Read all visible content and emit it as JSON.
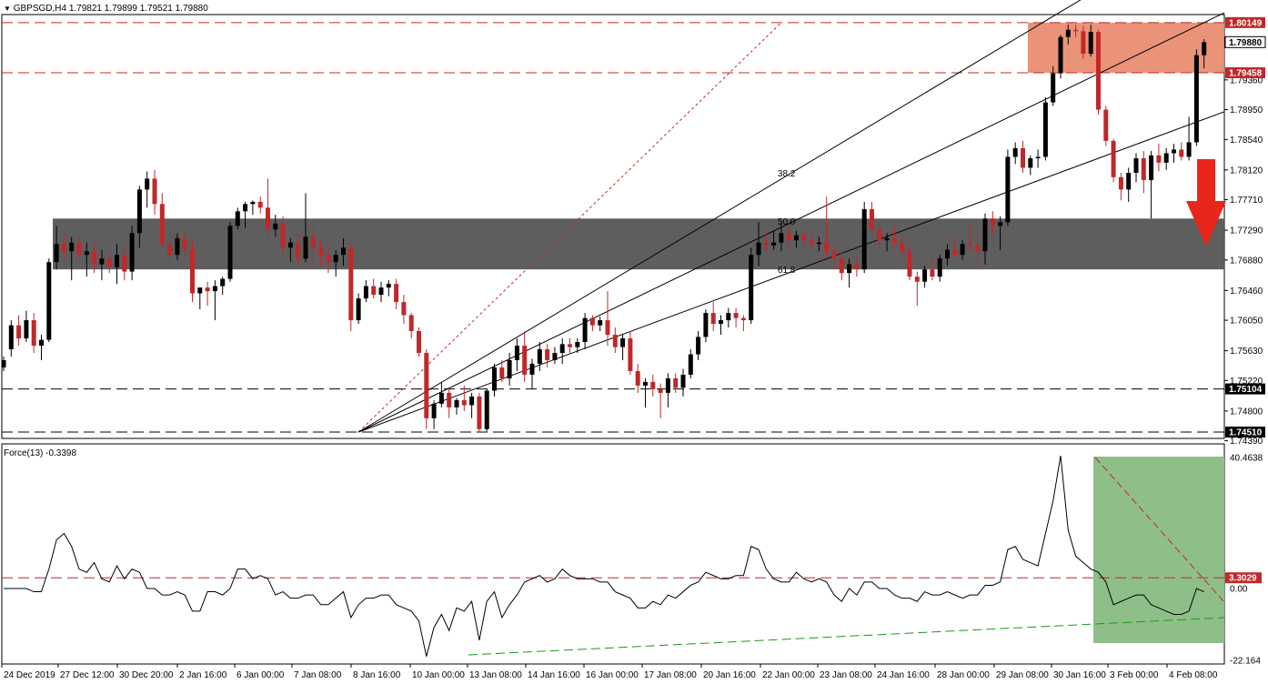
{
  "header": {
    "symbol_label": "GBPSGD,H4",
    "ohlc": "1.79821 1.79899 1.79521 1.79880",
    "indicator_label": "Force(13) -0.3398"
  },
  "colors": {
    "bull_candle": "#000000",
    "bear_candle": "#c0282a",
    "resistance_zone": "#e8876a",
    "support_zone": "#555555",
    "indicator_zone": "#8fbf88",
    "level_line": "#c0282a",
    "arrow": "#e8261c"
  },
  "icons": {
    "collapse": "triangle-down-icon"
  },
  "chart_data": [
    {
      "type": "candlestick",
      "title": "GBPSGD,H4",
      "ylim": [
        1.7439,
        1.8034
      ],
      "price_axis_ticks": [
        "1.79360",
        "1.78950",
        "1.78540",
        "1.78120",
        "1.77710",
        "1.77290",
        "1.76880",
        "1.76460",
        "1.76050",
        "1.75630",
        "1.75220",
        "1.74800",
        "1.74390"
      ],
      "time_axis_labels": [
        "24 Dec 2019",
        "27 Dec 12:00",
        "30 Dec 20:00",
        "2 Jan 16:00",
        "6 Jan 00:00",
        "7 Jan 08:00",
        "8 Jan 16:00",
        "10 Jan 00:00",
        "13 Jan 08:00",
        "14 Jan 16:00",
        "16 Jan 00:00",
        "17 Jan 08:00",
        "20 Jan 16:00",
        "22 Jan 00:00",
        "23 Jan 08:00",
        "24 Jan 16:00",
        "28 Jan 00:00",
        "29 Jan 08:00",
        "30 Jan 16:00",
        "3 Feb 00:00",
        "4 Feb 08:00"
      ],
      "price_levels": [
        {
          "label": "1.80149",
          "value": 1.80149,
          "style": "dashed-red"
        },
        {
          "label": "1.79458",
          "value": 1.79458,
          "style": "dashed-red"
        },
        {
          "label": "1.75104",
          "value": 1.75104,
          "style": "dashed-black"
        },
        {
          "label": "1.74510",
          "value": 1.7451,
          "style": "dashed-black"
        }
      ],
      "current_price": {
        "label": "1.79880",
        "value": 1.7988
      },
      "resistance_zone": [
        1.79458,
        1.80149
      ],
      "support_zone": [
        1.7675,
        1.7745
      ],
      "fibonacci_fan": {
        "anchor": {
          "index": 47,
          "value": 1.7451
        },
        "end": {
          "index": 103,
          "value": 1.80149
        },
        "levels": [
          "38.2",
          "50.0",
          "61.8"
        ]
      },
      "candles": [
        [
          1.754,
          1.7555,
          1.7535,
          1.755
        ],
        [
          1.7565,
          1.7605,
          1.7555,
          1.7598
        ],
        [
          1.7598,
          1.7612,
          1.757,
          1.758
        ],
        [
          1.758,
          1.7618,
          1.7575,
          1.7605
        ],
        [
          1.7605,
          1.7615,
          1.756,
          1.757
        ],
        [
          1.757,
          1.7585,
          1.755,
          1.7578
        ],
        [
          1.7578,
          1.769,
          1.7575,
          1.7685
        ],
        [
          1.7685,
          1.7735,
          1.7675,
          1.771
        ],
        [
          1.771,
          1.7725,
          1.769,
          1.77
        ],
        [
          1.77,
          1.772,
          1.766,
          1.7712
        ],
        [
          1.7712,
          1.772,
          1.7685,
          1.7695
        ],
        [
          1.7695,
          1.7712,
          1.7665,
          1.77
        ],
        [
          1.77,
          1.7712,
          1.767,
          1.7682
        ],
        [
          1.7682,
          1.7702,
          1.766,
          1.769
        ],
        [
          1.769,
          1.77,
          1.767,
          1.7678
        ],
        [
          1.7678,
          1.771,
          1.7655,
          1.7695
        ],
        [
          1.7695,
          1.7705,
          1.766,
          1.7672
        ],
        [
          1.7672,
          1.7735,
          1.766,
          1.7725
        ],
        [
          1.7725,
          1.779,
          1.7705,
          1.7785
        ],
        [
          1.7785,
          1.781,
          1.776,
          1.78
        ],
        [
          1.78,
          1.7812,
          1.775,
          1.7765
        ],
        [
          1.7765,
          1.778,
          1.7705,
          1.771
        ],
        [
          1.771,
          1.7725,
          1.768,
          1.7695
        ],
        [
          1.7695,
          1.7725,
          1.7688,
          1.7718
        ],
        [
          1.7718,
          1.7728,
          1.769,
          1.7702
        ],
        [
          1.7702,
          1.7715,
          1.763,
          1.7642
        ],
        [
          1.7642,
          1.765,
          1.762,
          1.765
        ],
        [
          1.765,
          1.7658,
          1.7625,
          1.7645
        ],
        [
          1.7645,
          1.766,
          1.7605,
          1.7652
        ],
        [
          1.7652,
          1.7665,
          1.764,
          1.7662
        ],
        [
          1.7662,
          1.774,
          1.7658,
          1.7735
        ],
        [
          1.7735,
          1.776,
          1.773,
          1.7755
        ],
        [
          1.7755,
          1.7768,
          1.7732,
          1.7765
        ],
        [
          1.7765,
          1.777,
          1.775,
          1.7768
        ],
        [
          1.7768,
          1.7775,
          1.7752,
          1.776
        ],
        [
          1.776,
          1.78,
          1.772,
          1.773
        ],
        [
          1.773,
          1.775,
          1.772,
          1.7738
        ],
        [
          1.7738,
          1.7748,
          1.769,
          1.7705
        ],
        [
          1.7705,
          1.7718,
          1.7685,
          1.7712
        ],
        [
          1.7712,
          1.7725,
          1.768,
          1.769
        ],
        [
          1.769,
          1.778,
          1.7685,
          1.772
        ],
        [
          1.772,
          1.7735,
          1.768,
          1.7705
        ],
        [
          1.7705,
          1.7715,
          1.768,
          1.7695
        ],
        [
          1.7695,
          1.7705,
          1.767,
          1.7685
        ],
        [
          1.7685,
          1.7702,
          1.7665,
          1.7695
        ],
        [
          1.7695,
          1.7718,
          1.768,
          1.7705
        ],
        [
          1.7705,
          1.771,
          1.759,
          1.7605
        ],
        [
          1.7605,
          1.7642,
          1.76,
          1.7635
        ],
        [
          1.7635,
          1.766,
          1.763,
          1.7652
        ],
        [
          1.7652,
          1.7662,
          1.7635,
          1.764
        ],
        [
          1.764,
          1.7658,
          1.763,
          1.765
        ],
        [
          1.765,
          1.766,
          1.7638,
          1.7655
        ],
        [
          1.7655,
          1.7662,
          1.762,
          1.763
        ],
        [
          1.763,
          1.764,
          1.76,
          1.7612
        ],
        [
          1.7612,
          1.7615,
          1.758,
          1.759
        ],
        [
          1.759,
          1.7595,
          1.7555,
          1.756
        ],
        [
          1.756,
          1.7565,
          1.7455,
          1.747
        ],
        [
          1.747,
          1.7495,
          1.7455,
          1.749
        ],
        [
          1.749,
          1.752,
          1.7485,
          1.7505
        ],
        [
          1.7505,
          1.7512,
          1.747,
          1.7485
        ],
        [
          1.7485,
          1.7498,
          1.7475,
          1.7495
        ],
        [
          1.7495,
          1.7515,
          1.748,
          1.7488
        ],
        [
          1.7488,
          1.7505,
          1.747,
          1.75
        ],
        [
          1.75,
          1.7505,
          1.7451,
          1.7455
        ],
        [
          1.7455,
          1.751,
          1.7452,
          1.7508
        ],
        [
          1.7508,
          1.7545,
          1.75,
          1.754
        ],
        [
          1.754,
          1.755,
          1.752,
          1.7525
        ],
        [
          1.7525,
          1.756,
          1.7515,
          1.755
        ],
        [
          1.755,
          1.758,
          1.7535,
          1.757
        ],
        [
          1.757,
          1.759,
          1.752,
          1.753
        ],
        [
          1.753,
          1.7552,
          1.751,
          1.7545
        ],
        [
          1.7545,
          1.7575,
          1.7535,
          1.7565
        ],
        [
          1.7565,
          1.7572,
          1.754,
          1.755
        ],
        [
          1.755,
          1.7568,
          1.7545,
          1.756
        ],
        [
          1.756,
          1.758,
          1.7545,
          1.7572
        ],
        [
          1.7572,
          1.758,
          1.756,
          1.7568
        ],
        [
          1.7568,
          1.758,
          1.756,
          1.7575
        ],
        [
          1.7575,
          1.7615,
          1.7565,
          1.7608
        ],
        [
          1.7608,
          1.7612,
          1.759,
          1.7598
        ],
        [
          1.7598,
          1.761,
          1.759,
          1.7605
        ],
        [
          1.7605,
          1.7645,
          1.757,
          1.7585
        ],
        [
          1.7585,
          1.7595,
          1.756,
          1.7568
        ],
        [
          1.7568,
          1.7585,
          1.755,
          1.758
        ],
        [
          1.758,
          1.759,
          1.753,
          1.7535
        ],
        [
          1.7535,
          1.7545,
          1.7505,
          1.7515
        ],
        [
          1.7515,
          1.7525,
          1.7485,
          1.752
        ],
        [
          1.752,
          1.753,
          1.75,
          1.751
        ],
        [
          1.751,
          1.7518,
          1.747,
          1.7505
        ],
        [
          1.7505,
          1.7532,
          1.7485,
          1.7525
        ],
        [
          1.7525,
          1.7532,
          1.7505,
          1.7512
        ],
        [
          1.7512,
          1.7538,
          1.75,
          1.753
        ],
        [
          1.753,
          1.7565,
          1.7525,
          1.7558
        ],
        [
          1.7558,
          1.759,
          1.755,
          1.7582
        ],
        [
          1.7582,
          1.762,
          1.7575,
          1.7615
        ],
        [
          1.7615,
          1.763,
          1.759,
          1.76
        ],
        [
          1.76,
          1.7612,
          1.7585,
          1.7605
        ],
        [
          1.7605,
          1.7622,
          1.7595,
          1.7615
        ],
        [
          1.7615,
          1.7622,
          1.7595,
          1.7608
        ],
        [
          1.7608,
          1.7612,
          1.759,
          1.7605
        ],
        [
          1.7605,
          1.7705,
          1.76,
          1.7695
        ],
        [
          1.7695,
          1.774,
          1.768,
          1.7712
        ],
        [
          1.7712,
          1.7725,
          1.77,
          1.7708
        ],
        [
          1.7708,
          1.7728,
          1.7702,
          1.7712
        ],
        [
          1.7712,
          1.774,
          1.77,
          1.7725
        ],
        [
          1.7725,
          1.7735,
          1.7705,
          1.7715
        ],
        [
          1.7715,
          1.7728,
          1.7705,
          1.7722
        ],
        [
          1.7722,
          1.773,
          1.7705,
          1.7715
        ],
        [
          1.7715,
          1.7725,
          1.7702,
          1.771
        ],
        [
          1.771,
          1.772,
          1.77,
          1.7712
        ],
        [
          1.7712,
          1.7775,
          1.769,
          1.77
        ],
        [
          1.77,
          1.7712,
          1.7675,
          1.769
        ],
        [
          1.769,
          1.77,
          1.766,
          1.767
        ],
        [
          1.767,
          1.769,
          1.765,
          1.7682
        ],
        [
          1.7682,
          1.7692,
          1.7665,
          1.7675
        ],
        [
          1.7675,
          1.7768,
          1.767,
          1.7758
        ],
        [
          1.7758,
          1.7768,
          1.772,
          1.773
        ],
        [
          1.773,
          1.774,
          1.7705,
          1.7715
        ],
        [
          1.7715,
          1.7725,
          1.77,
          1.7718
        ],
        [
          1.7718,
          1.7735,
          1.7705,
          1.7712
        ],
        [
          1.7712,
          1.772,
          1.769,
          1.77
        ],
        [
          1.77,
          1.771,
          1.766,
          1.7665
        ],
        [
          1.7665,
          1.7672,
          1.7625,
          1.7658
        ],
        [
          1.7658,
          1.768,
          1.765,
          1.7675
        ],
        [
          1.7675,
          1.7688,
          1.766,
          1.7665
        ],
        [
          1.7665,
          1.7695,
          1.7658,
          1.769
        ],
        [
          1.769,
          1.771,
          1.768,
          1.7702
        ],
        [
          1.7702,
          1.772,
          1.769,
          1.7695
        ],
        [
          1.7695,
          1.7715,
          1.7688,
          1.771
        ],
        [
          1.771,
          1.7742,
          1.77,
          1.7708
        ],
        [
          1.7708,
          1.7722,
          1.768,
          1.77
        ],
        [
          1.77,
          1.7752,
          1.7682,
          1.7745
        ],
        [
          1.7745,
          1.7755,
          1.772,
          1.7735
        ],
        [
          1.7735,
          1.7748,
          1.7702,
          1.774
        ],
        [
          1.774,
          1.784,
          1.7735,
          1.783
        ],
        [
          1.783,
          1.785,
          1.782,
          1.7842
        ],
        [
          1.7842,
          1.7852,
          1.7808,
          1.7815
        ],
        [
          1.7815,
          1.7832,
          1.7805,
          1.7828
        ],
        [
          1.7828,
          1.784,
          1.7815,
          1.783
        ],
        [
          1.783,
          1.7912,
          1.7825,
          1.7905
        ],
        [
          1.7905,
          1.7955,
          1.79,
          1.7945
        ],
        [
          1.7945,
          1.7998,
          1.7938,
          1.7995
        ],
        [
          1.7995,
          1.8012,
          1.7985,
          1.8005
        ],
        [
          1.8005,
          1.8012,
          1.7995,
          1.8003
        ],
        [
          1.8003,
          1.801,
          1.7965,
          1.7972
        ],
        [
          1.7972,
          1.8012,
          1.7968,
          1.8002
        ],
        [
          1.8002,
          1.8005,
          1.7888,
          1.7895
        ],
        [
          1.7895,
          1.79,
          1.7845,
          1.7852
        ],
        [
          1.7852,
          1.7855,
          1.7795,
          1.7802
        ],
        [
          1.7802,
          1.7808,
          1.777,
          1.7785
        ],
        [
          1.7785,
          1.7815,
          1.7768,
          1.7808
        ],
        [
          1.7808,
          1.7835,
          1.7795,
          1.7828
        ],
        [
          1.7828,
          1.7838,
          1.778,
          1.7798
        ],
        [
          1.7798,
          1.7838,
          1.7745,
          1.7832
        ],
        [
          1.7832,
          1.7848,
          1.781,
          1.7822
        ],
        [
          1.7822,
          1.7842,
          1.7812,
          1.7835
        ],
        [
          1.7835,
          1.7848,
          1.7822,
          1.784
        ],
        [
          1.784,
          1.785,
          1.7825,
          1.783
        ],
        [
          1.783,
          1.7885,
          1.7825,
          1.785
        ],
        [
          1.785,
          1.7978,
          1.7845,
          1.797
        ],
        [
          1.797,
          1.7992,
          1.7952,
          1.7988
        ]
      ]
    },
    {
      "type": "line",
      "title": "Force(13) -0.3398",
      "ylim": [
        -22.164,
        40.4638
      ],
      "axis_labels": [
        "40.4638",
        "0.00",
        "-22.164"
      ],
      "level": {
        "label": "3.3029",
        "value": 3.3029
      },
      "values": [
        0,
        0,
        0,
        0,
        -1,
        -1,
        6,
        15,
        17,
        13,
        6,
        5,
        8,
        3,
        2,
        7,
        3,
        6,
        5,
        0,
        0,
        -2,
        -2,
        -1,
        -2,
        -7,
        -7,
        -1,
        -1,
        -2,
        0,
        6,
        6,
        3,
        4,
        3,
        -2,
        -1,
        -3,
        -3,
        -2,
        -2,
        -5,
        -5,
        -3,
        -1,
        -9,
        -5,
        -3,
        -3,
        -2,
        -2,
        -5,
        -6,
        -7,
        -10,
        -21,
        -12,
        -8,
        -13,
        -6,
        -7,
        -4,
        -16,
        -4,
        -1,
        -9,
        -5,
        -2,
        2,
        3,
        4,
        2,
        3,
        6,
        4,
        3,
        3,
        3,
        2,
        2,
        -1,
        -2,
        -3,
        -6,
        -6,
        -4,
        -5,
        -2,
        -3,
        -1,
        1,
        2,
        5,
        4,
        3,
        3,
        4,
        4,
        13,
        12,
        6,
        3,
        2,
        2,
        5,
        3,
        2,
        3,
        2,
        -2,
        -4,
        0,
        -2,
        2,
        2,
        0,
        0,
        -2,
        -3,
        -3,
        -4,
        -1,
        -2,
        -2,
        -1,
        -2,
        -3,
        -2,
        -2,
        1,
        1,
        2,
        12,
        13,
        9,
        8,
        7,
        17,
        27,
        41,
        18,
        10,
        8,
        6,
        5,
        2,
        -5,
        -4,
        -3,
        -2,
        -2,
        -5,
        -6,
        -7,
        -8,
        -8,
        -7,
        0,
        -1
      ]
    }
  ]
}
